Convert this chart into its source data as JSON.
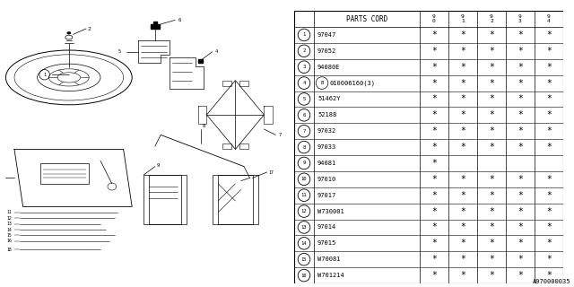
{
  "bg_color": "#ffffff",
  "parts_cord_header": "PARTS CORD",
  "year_cols": [
    "9\n0",
    "9\n1",
    "9\n2",
    "9\n3",
    "9\n4"
  ],
  "rows": [
    {
      "num": "1",
      "part": "97047",
      "stars": [
        1,
        1,
        1,
        1,
        1
      ]
    },
    {
      "num": "2",
      "part": "97052",
      "stars": [
        1,
        1,
        1,
        1,
        1
      ]
    },
    {
      "num": "3",
      "part": "94080E",
      "stars": [
        1,
        1,
        1,
        1,
        1
      ]
    },
    {
      "num": "4",
      "part": "B010006160(3)",
      "stars": [
        1,
        1,
        1,
        1,
        1
      ]
    },
    {
      "num": "5",
      "part": "51462Y",
      "stars": [
        1,
        1,
        1,
        1,
        1
      ]
    },
    {
      "num": "6",
      "part": "52188",
      "stars": [
        1,
        1,
        1,
        1,
        1
      ]
    },
    {
      "num": "7",
      "part": "97032",
      "stars": [
        1,
        1,
        1,
        1,
        1
      ]
    },
    {
      "num": "8",
      "part": "97033",
      "stars": [
        1,
        1,
        1,
        1,
        1
      ]
    },
    {
      "num": "9",
      "part": "94081",
      "stars": [
        1,
        0,
        0,
        0,
        0
      ]
    },
    {
      "num": "10",
      "part": "97010",
      "stars": [
        1,
        1,
        1,
        1,
        1
      ]
    },
    {
      "num": "11",
      "part": "97017",
      "stars": [
        1,
        1,
        1,
        1,
        1
      ]
    },
    {
      "num": "12",
      "part": "W730001",
      "stars": [
        1,
        1,
        1,
        1,
        1
      ]
    },
    {
      "num": "13",
      "part": "97014",
      "stars": [
        1,
        1,
        1,
        1,
        1
      ]
    },
    {
      "num": "14",
      "part": "97015",
      "stars": [
        1,
        1,
        1,
        1,
        1
      ]
    },
    {
      "num": "15",
      "part": "W70081",
      "stars": [
        1,
        1,
        1,
        1,
        1
      ]
    },
    {
      "num": "16",
      "part": "W701214",
      "stars": [
        1,
        1,
        1,
        1,
        1
      ]
    }
  ],
  "footnote": "A970000035",
  "line_color": "#000000",
  "text_color": "#000000"
}
